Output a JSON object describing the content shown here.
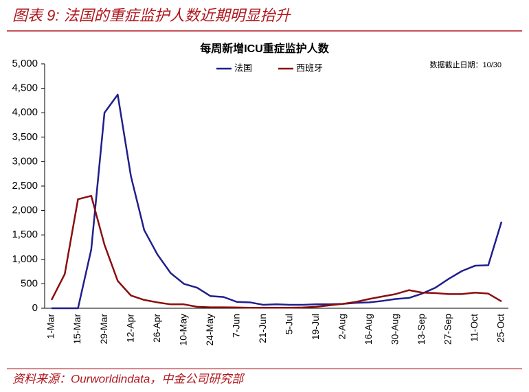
{
  "figure_title": "图表 9: 法国的重症监护人数近期明显抬升",
  "source": "资料来源：Ourworldindata，中金公司研究部",
  "chart_data": {
    "type": "line",
    "title": "每周新增ICU重症监护人数",
    "annotation": "数据截止日期：10/30",
    "categories": [
      "1-Mar",
      null,
      "15-Mar",
      null,
      "29-Mar",
      null,
      "12-Apr",
      null,
      "26-Apr",
      null,
      "10-May",
      null,
      "24-May",
      null,
      "7-Jun",
      null,
      "21-Jun",
      null,
      "5-Jul",
      null,
      "19-Jul",
      null,
      "2-Aug",
      null,
      "16-Aug",
      null,
      "30-Aug",
      null,
      "13-Sep",
      null,
      "27-Sep",
      null,
      "11-Oct",
      null,
      "25-Oct"
    ],
    "series": [
      {
        "name": "法国",
        "color": "#1f1f8c",
        "values": [
          0,
          0,
          0,
          1200,
          4000,
          4370,
          2700,
          1600,
          1100,
          720,
          500,
          420,
          250,
          230,
          130,
          120,
          70,
          80,
          70,
          70,
          80,
          80,
          90,
          110,
          120,
          150,
          190,
          210,
          300,
          420,
          600,
          760,
          870,
          880,
          1770
        ]
      },
      {
        "name": "西班牙",
        "color": "#8b0d0d",
        "values": [
          170,
          700,
          2230,
          2300,
          1300,
          560,
          260,
          170,
          120,
          80,
          80,
          30,
          20,
          20,
          15,
          10,
          10,
          10,
          10,
          15,
          30,
          60,
          90,
          130,
          190,
          240,
          290,
          370,
          320,
          310,
          290,
          290,
          320,
          300,
          140
        ]
      }
    ],
    "ylim": [
      0,
      5000
    ],
    "yticks": [
      0,
      500,
      {
        "value": 1000,
        "label": "1,000"
      },
      {
        "value": 1500,
        "label": "1,500"
      },
      {
        "value": 2000,
        "label": "2,000"
      },
      {
        "value": 2500,
        "label": "2,500"
      },
      {
        "value": 3000,
        "label": "3,000"
      },
      {
        "value": 3500,
        "label": "3,500"
      },
      {
        "value": 4000,
        "label": "4,000"
      },
      {
        "value": 4500,
        "label": "4,500"
      },
      {
        "value": 5000,
        "label": "5,000"
      }
    ],
    "legend": "top"
  }
}
